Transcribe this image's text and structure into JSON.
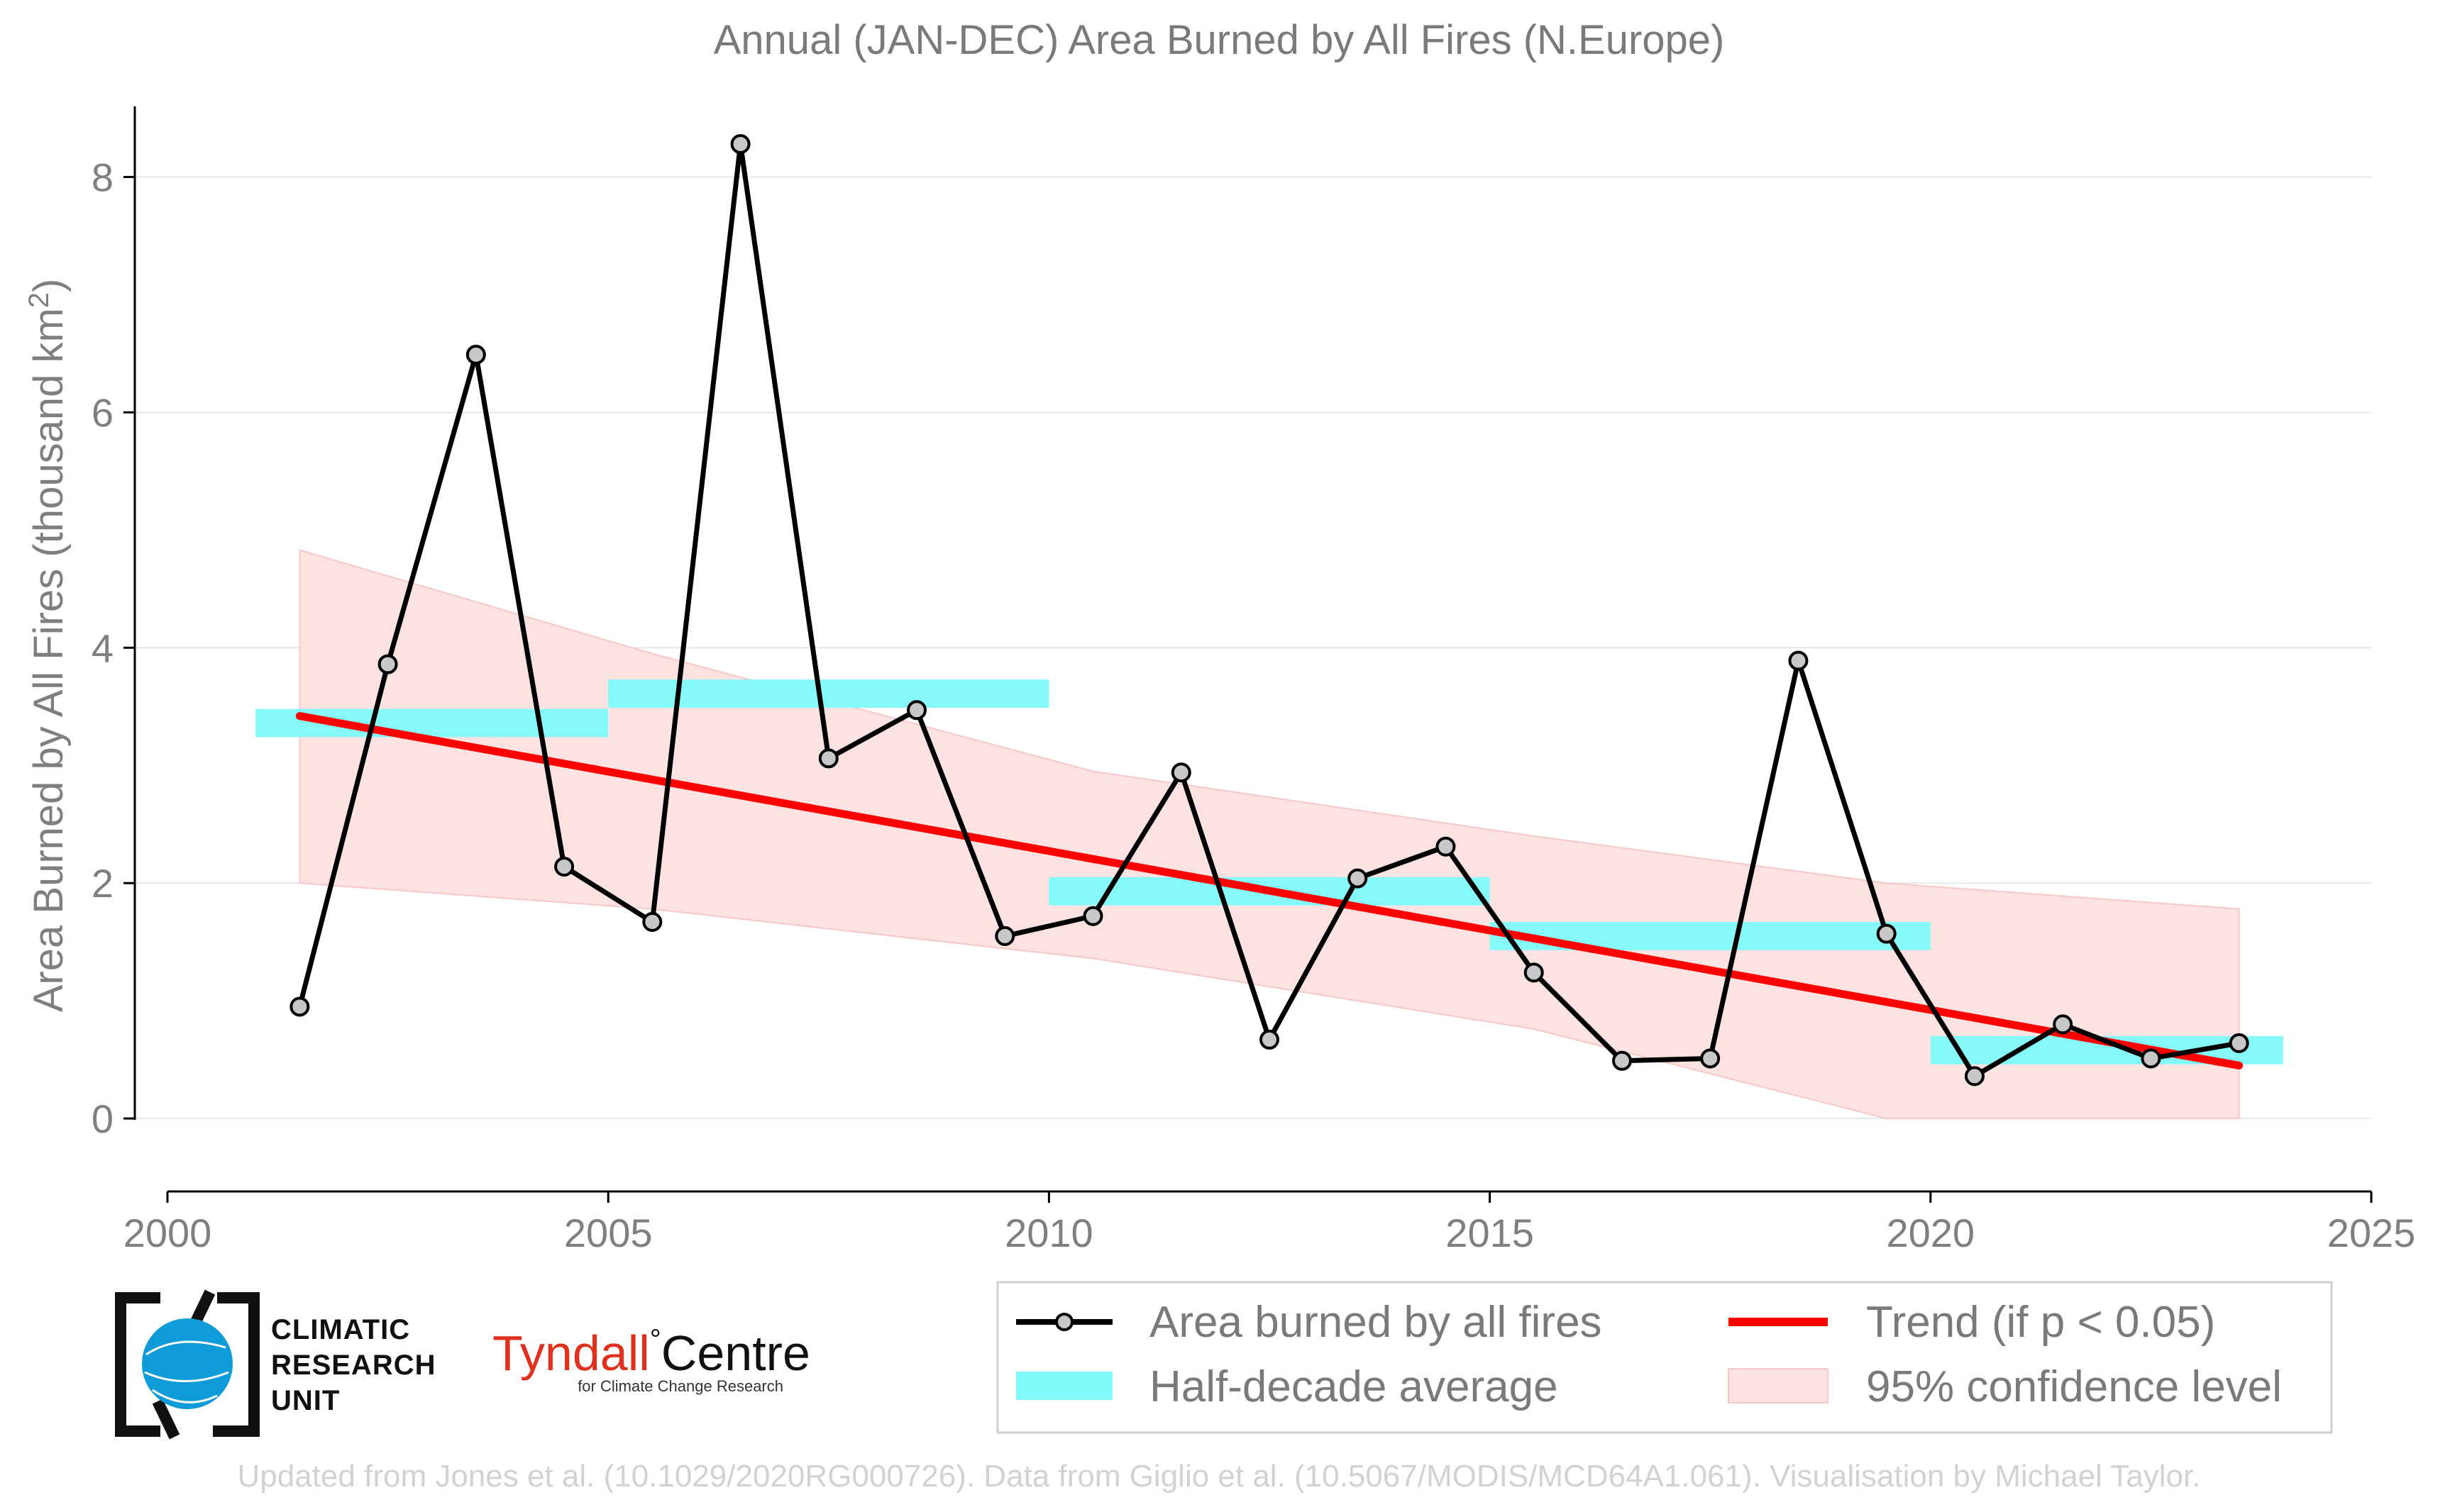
{
  "chart_data": {
    "type": "line",
    "title": "Annual (JAN-DEC) Area Burned by All Fires (N.Europe)",
    "xlabel": "",
    "ylabel": "Area Burned by All Fires (thousand km",
    "ylabel_sup": "2",
    "ylabel_end": ")",
    "xlim": [
      2000,
      2025
    ],
    "ylim": [
      -0.62,
      8.6
    ],
    "x_ticks": [
      2000,
      2005,
      2010,
      2015,
      2020,
      2025
    ],
    "x_tick_labels": [
      "2000",
      "2005",
      "2010",
      "2015",
      "2020",
      "2025"
    ],
    "y_ticks": [
      0,
      2,
      4,
      6,
      8
    ],
    "y_tick_labels": [
      "0",
      "2",
      "4",
      "6",
      "8"
    ],
    "grid": "horizontal",
    "legend_position": "bottom-right",
    "series": [
      {
        "name": "Area burned by all fires",
        "kind": "line-markers",
        "color": "#000000",
        "marker_fill": "#c8c8c8",
        "x": [
          2001.5,
          2002.5,
          2003.5,
          2004.5,
          2005.5,
          2006.5,
          2007.5,
          2008.5,
          2009.5,
          2010.5,
          2011.5,
          2012.5,
          2013.5,
          2014.5,
          2015.5,
          2016.5,
          2017.5,
          2018.5,
          2019.5,
          2020.5,
          2021.5,
          2022.5,
          2023.5
        ],
        "y": [
          0.95,
          3.86,
          6.49,
          2.14,
          1.67,
          8.28,
          3.06,
          3.47,
          1.55,
          1.72,
          2.94,
          0.67,
          2.04,
          2.31,
          1.24,
          0.49,
          0.51,
          3.89,
          1.57,
          0.36,
          0.8,
          0.51,
          0.64
        ]
      },
      {
        "name": "Half-decade average",
        "kind": "bands",
        "color": "#80fafa",
        "segments": [
          {
            "x0": 2001.0,
            "x1": 2005.0,
            "y": 3.36
          },
          {
            "x0": 2005.0,
            "x1": 2010.0,
            "y": 3.61
          },
          {
            "x0": 2010.0,
            "x1": 2015.0,
            "y": 1.93
          },
          {
            "x0": 2015.0,
            "x1": 2020.0,
            "y": 1.55
          },
          {
            "x0": 2020.0,
            "x1": 2024.0,
            "y": 0.58
          }
        ],
        "half_height": 0.12
      },
      {
        "name": "Trend (if p < 0.05)",
        "kind": "line",
        "color": "#ff0000",
        "x": [
          2001.5,
          2023.5
        ],
        "y": [
          3.42,
          0.45
        ]
      },
      {
        "name": "95% confidence level",
        "kind": "band",
        "color": "#fde2e2",
        "x": [
          2001.5,
          2005.5,
          2010.5,
          2015.5,
          2019.5,
          2023.5
        ],
        "upper": [
          4.83,
          3.95,
          2.95,
          2.4,
          2.0,
          1.78
        ],
        "lower": [
          2.0,
          1.78,
          1.36,
          0.76,
          0.0,
          0.0
        ]
      }
    ]
  },
  "logos": {
    "cru_line1": "CLIMATIC",
    "cru_line2": "RESEARCH",
    "cru_line3": "UNIT",
    "tyndall_main": "Tyndall",
    "tyndall_degree": "°",
    "tyndall_centre": "Centre",
    "tyndall_sub": "for Climate Change Research"
  },
  "footer": {
    "credit": "Updated from Jones et al. (10.1029/2020RG000726). Data from Giglio et al. (10.5067/MODIS/MCD64A1.061). Visualisation by Michael Taylor."
  },
  "colors": {
    "axis": "#000000",
    "grid": "#e6e6e6",
    "legend_border": "#d0d0d0",
    "cru_blue": "#0e9bd8"
  }
}
